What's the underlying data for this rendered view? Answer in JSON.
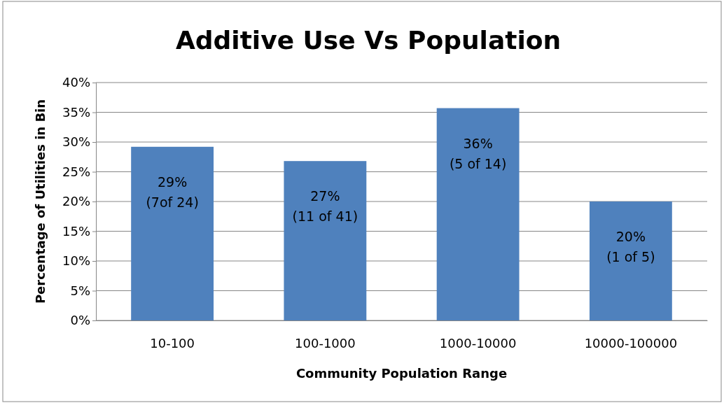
{
  "chart_data": {
    "type": "bar",
    "title": "Additive Use Vs Population",
    "xlabel": "Community Population Range",
    "ylabel": "Percentage of Utilities in Bin",
    "categories": [
      "10-100",
      "100-1000",
      "1000-10000",
      "10000-100000"
    ],
    "values": [
      29.2,
      26.8,
      35.7,
      20
    ],
    "value_labels": [
      "29%\n(7of 24)",
      "27%\n(11 of 41)",
      "36%\n(5 of 14)",
      "20%\n(1 of 5)"
    ],
    "color": "#4f81bd",
    "ylim": [
      0,
      40
    ],
    "yticks": [
      {
        "value": 0,
        "label": "0%"
      },
      {
        "value": 5,
        "label": "5%"
      },
      {
        "value": 10,
        "label": "10%"
      },
      {
        "value": 15,
        "label": "15%"
      },
      {
        "value": 20,
        "label": "20%"
      },
      {
        "value": 25,
        "label": "25%"
      },
      {
        "value": 30,
        "label": "30%"
      },
      {
        "value": 35,
        "label": "35%"
      },
      {
        "value": 40,
        "label": "40%"
      }
    ],
    "grid": "y"
  }
}
